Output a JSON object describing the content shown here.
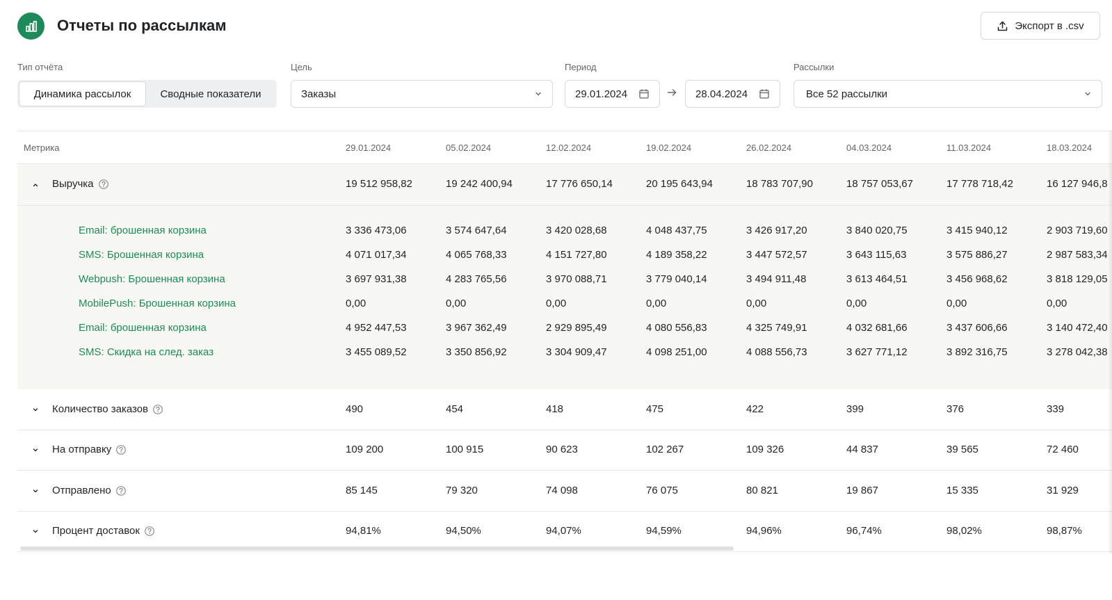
{
  "header": {
    "title": "Отчеты по рассылкам",
    "export_label": "Экспорт в .csv"
  },
  "filters": {
    "report_type_label": "Тип отчёта",
    "report_type_options": [
      "Динамика рассылок",
      "Сводные показатели"
    ],
    "goal_label": "Цель",
    "goal_value": "Заказы",
    "period_label": "Период",
    "date_from": "29.01.2024",
    "date_to": "28.04.2024",
    "mailings_label": "Рассылки",
    "mailings_value": "Все 52 рассылки"
  },
  "table": {
    "metric_header": "Метрика",
    "columns": [
      "29.01.2024",
      "05.02.2024",
      "12.02.2024",
      "19.02.2024",
      "26.02.2024",
      "04.03.2024",
      "11.03.2024",
      "18.03.2024"
    ],
    "revenue": {
      "label": "Выручка",
      "values": [
        "19 512 958,82",
        "19 242 400,94",
        "17 776 650,14",
        "20 195 643,94",
        "18 783 707,90",
        "18 757 053,67",
        "17 778 718,42",
        "16 127 946,8"
      ],
      "sub_rows": [
        {
          "label": "Email: брошенная корзина",
          "values": [
            "3 336 473,06",
            "3 574 647,64",
            "3 420 028,68",
            "4 048 437,75",
            "3 426 917,20",
            "3 840 020,75",
            "3 415 940,12",
            "2 903 719,60"
          ]
        },
        {
          "label": "SMS: Брошенная корзина",
          "values": [
            "4 071 017,34",
            "4 065 768,33",
            "4 151 727,80",
            "4 189 358,22",
            "3 447 572,57",
            "3 643 115,63",
            "3 575 886,27",
            "2 987 583,34"
          ]
        },
        {
          "label": "Webpush: Брошенная корзина",
          "values": [
            "3 697 931,38",
            "4 283 765,56",
            "3 970 088,71",
            "3 779 040,14",
            "3 494 911,48",
            "3 613 464,51",
            "3 456 968,62",
            "3 818 129,05"
          ]
        },
        {
          "label": "MobilePush: Брошенная корзина",
          "values": [
            "0,00",
            "0,00",
            "0,00",
            "0,00",
            "0,00",
            "0,00",
            "0,00",
            "0,00"
          ]
        },
        {
          "label": "Email: брошенная корзина",
          "values": [
            "4 952 447,53",
            "3 967 362,49",
            "2 929 895,49",
            "4 080 556,83",
            "4 325 749,91",
            "4 032 681,66",
            "3 437 606,66",
            "3 140 472,40"
          ]
        },
        {
          "label": "SMS: Скидка на след. заказ",
          "values": [
            "3 455 089,52",
            "3 350 856,92",
            "3 304 909,47",
            "4 098 251,00",
            "4 088 556,73",
            "3 627 771,12",
            "3 892 316,75",
            "3 278 042,38"
          ]
        }
      ]
    },
    "metrics": [
      {
        "label": "Количество заказов",
        "values": [
          "490",
          "454",
          "418",
          "475",
          "422",
          "399",
          "376",
          "339"
        ]
      },
      {
        "label": "На отправку",
        "values": [
          "109 200",
          "100 915",
          "90 623",
          "102 267",
          "109 326",
          "44 837",
          "39 565",
          "72 460"
        ]
      },
      {
        "label": "Отправлено",
        "values": [
          "85 145",
          "79 320",
          "74 098",
          "76 075",
          "80 821",
          "19 867",
          "15 335",
          "31 929"
        ]
      },
      {
        "label": "Процент доставок",
        "values": [
          "94,81%",
          "94,50%",
          "94,07%",
          "94,59%",
          "94,96%",
          "96,74%",
          "98,02%",
          "98,87%"
        ]
      }
    ]
  },
  "colors": {
    "accent": "#1e8a5a",
    "expanded_bg": "#f7f7f3",
    "border": "#d6d9dc"
  },
  "icons": {
    "logo": "bar-chart-icon",
    "export": "upload-icon",
    "calendar": "calendar-icon",
    "select": "chevron-down-icon",
    "range": "arrow-right-icon",
    "help": "question-circle-icon",
    "collapse": "chevron-up-icon",
    "expand": "chevron-down-icon"
  }
}
